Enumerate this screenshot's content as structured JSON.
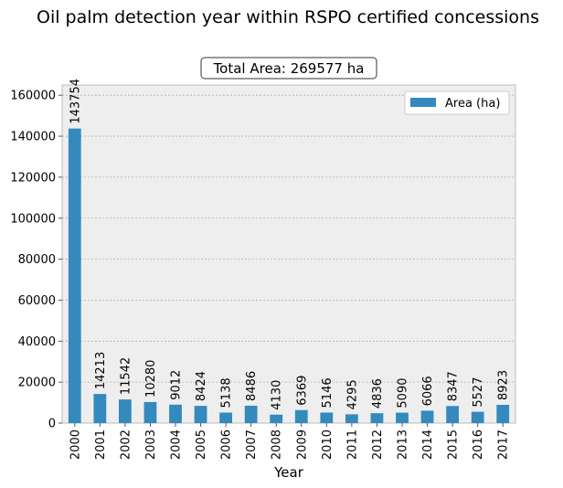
{
  "chart_data": {
    "type": "bar",
    "title": "Oil palm detection year within RSPO certified concessions",
    "subtitle": "Total Area: 269577 ha",
    "xlabel": "Year",
    "ylabel": "",
    "ylim": [
      0,
      165000
    ],
    "yticks": [
      "0",
      "20000",
      "40000",
      "60000",
      "80000",
      "100000",
      "120000",
      "140000",
      "160000"
    ],
    "grid": true,
    "legend_position": "top-right",
    "categories": [
      "2000",
      "2001",
      "2002",
      "2003",
      "2004",
      "2005",
      "2006",
      "2007",
      "2008",
      "2009",
      "2010",
      "2011",
      "2012",
      "2013",
      "2014",
      "2015",
      "2016",
      "2017"
    ],
    "series": [
      {
        "name": "Area (ha)",
        "color": "#348abd",
        "values": [
          143754,
          14213,
          11542,
          10280,
          9012,
          8424,
          5138,
          8486,
          4130,
          6369,
          5146,
          4295,
          4836,
          5090,
          6066,
          8347,
          5527,
          8923
        ]
      }
    ],
    "bar_labels": [
      "143754",
      "14213",
      "11542",
      "10280",
      "9012",
      "8424",
      "5138",
      "8486",
      "4130",
      "6369",
      "5146",
      "4295",
      "4836",
      "5090",
      "6066",
      "8347",
      "5527",
      "8923"
    ]
  }
}
